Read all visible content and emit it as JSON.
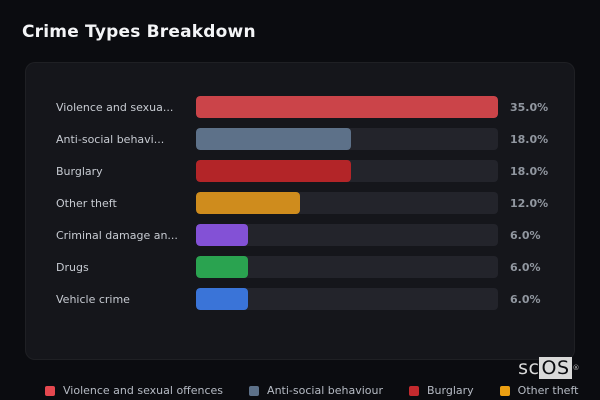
{
  "title": "Crime Types Breakdown",
  "colors": {
    "page_bg": "#0b0c10",
    "panel_bg": "#15161b",
    "bar_track": "#23242b",
    "label_text": "#c7cbd2",
    "value_text": "#9197a0",
    "title_text": "#f4f5f7",
    "legend_text": "#b6bbc4"
  },
  "chart_data": {
    "type": "bar",
    "orientation": "horizontal",
    "title": "Crime Types Breakdown",
    "categories": [
      "Violence and sexua...",
      "Anti-social behavi...",
      "Burglary",
      "Other theft",
      "Criminal damage an...",
      "Drugs",
      "Vehicle crime"
    ],
    "values": [
      35.0,
      18.0,
      18.0,
      12.0,
      6.0,
      6.0,
      6.0
    ],
    "value_labels": [
      "35.0%",
      "18.0%",
      "18.0%",
      "12.0%",
      "6.0%",
      "6.0%",
      "6.0%"
    ],
    "bar_colors": [
      "#cb4449",
      "#5d7189",
      "#b32528",
      "#cf8c1d",
      "#8351d6",
      "#2aa350",
      "#3a74d8"
    ],
    "xlim": [
      0,
      35
    ],
    "grid": false,
    "legend_position": "bottom",
    "legend_entries": [
      "Violence and sexual offences",
      "Anti-social behaviour",
      "Burglary",
      "Other theft"
    ]
  },
  "rows": [
    {
      "label": "Violence and sexua...",
      "value_label": "35.0%",
      "pct_of_max": 100,
      "color": "#cb4449"
    },
    {
      "label": "Anti-social behavi...",
      "value_label": "18.0%",
      "pct_of_max": 51.43,
      "color": "#5d7189"
    },
    {
      "label": "Burglary",
      "value_label": "18.0%",
      "pct_of_max": 51.43,
      "color": "#b32528"
    },
    {
      "label": "Other theft",
      "value_label": "12.0%",
      "pct_of_max": 34.29,
      "color": "#cf8c1d"
    },
    {
      "label": "Criminal damage an...",
      "value_label": "6.0%",
      "pct_of_max": 17.14,
      "color": "#8351d6"
    },
    {
      "label": "Drugs",
      "value_label": "6.0%",
      "pct_of_max": 17.14,
      "color": "#2aa350"
    },
    {
      "label": "Vehicle crime",
      "value_label": "6.0%",
      "pct_of_max": 17.14,
      "color": "#3a74d8"
    }
  ],
  "legend": {
    "items": [
      {
        "label": "Violence and sexual offences",
        "color": "#e5484f"
      },
      {
        "label": "Anti-social behaviour",
        "color": "#5d7189"
      },
      {
        "label": "Burglary",
        "color": "#c42a2e"
      },
      {
        "label": "Other theft",
        "color": "#eda012"
      }
    ]
  },
  "logo": {
    "text_left": "sc",
    "text_box": "OS",
    "registered_mark": "®"
  }
}
